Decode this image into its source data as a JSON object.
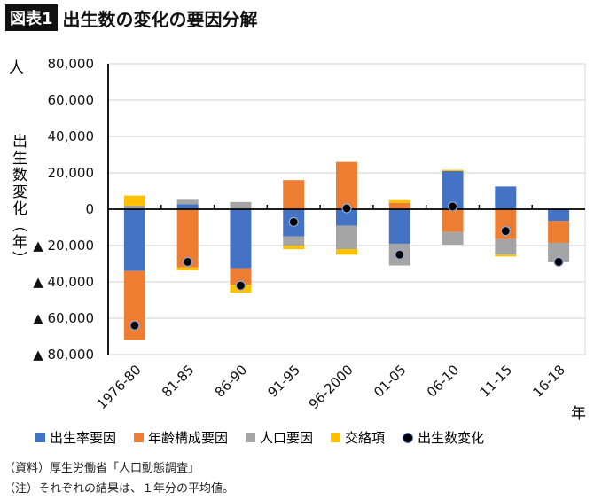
{
  "header": {
    "badge": "図表1",
    "title": "出生数の変化の要因分解"
  },
  "notes": [
    "（資料）厚生労働省「人口動態調査」",
    "（注）それぞれの結果は、１年分の平均値。"
  ],
  "chart_data": {
    "type": "bar",
    "stacked": true,
    "ylabel": "出生数変化（年）",
    "yunit": "人",
    "xunit": "年",
    "ylim": [
      -80000,
      80000
    ],
    "yticks": [
      80000,
      60000,
      40000,
      20000,
      0,
      -20000,
      -40000,
      -60000,
      -80000
    ],
    "ytick_labels": [
      "80,000",
      "60,000",
      "40,000",
      "20,000",
      "0",
      "▲ 20,000",
      "▲ 40,000",
      "▲ 60,000",
      "▲ 80,000"
    ],
    "grid": true,
    "legend_position": "bottom",
    "categories": [
      "1976-80",
      "81-85",
      "86-90",
      "91-95",
      "96-2000",
      "01-05",
      "06-10",
      "11-15",
      "16-18"
    ],
    "series": [
      {
        "name": "出生率要因",
        "color": "#4472C4",
        "values": [
          -34000,
          2800,
          -32500,
          -15000,
          -9000,
          -19000,
          21000,
          12500,
          -6500
        ]
      },
      {
        "name": "年齢構成要因",
        "color": "#ED7D31",
        "values": [
          -38000,
          -32000,
          -9000,
          16000,
          26000,
          3500,
          -12500,
          -16500,
          -12000
        ]
      },
      {
        "name": "人口要因",
        "color": "#A5A5A5",
        "values": [
          2000,
          2400,
          4000,
          -5000,
          -13000,
          -12000,
          -7000,
          -8500,
          -10500
        ]
      },
      {
        "name": "交絡項",
        "color": "#FFC000",
        "values": [
          5500,
          -1500,
          -4500,
          -2000,
          -3000,
          1500,
          700,
          -1000,
          0
        ]
      }
    ],
    "line_series": {
      "name": "出生数変化",
      "marker": "dot",
      "color": "#000000",
      "values": [
        -64000,
        -29000,
        -42000,
        -7000,
        500,
        -25000,
        1500,
        -12000,
        -29000
      ]
    }
  }
}
